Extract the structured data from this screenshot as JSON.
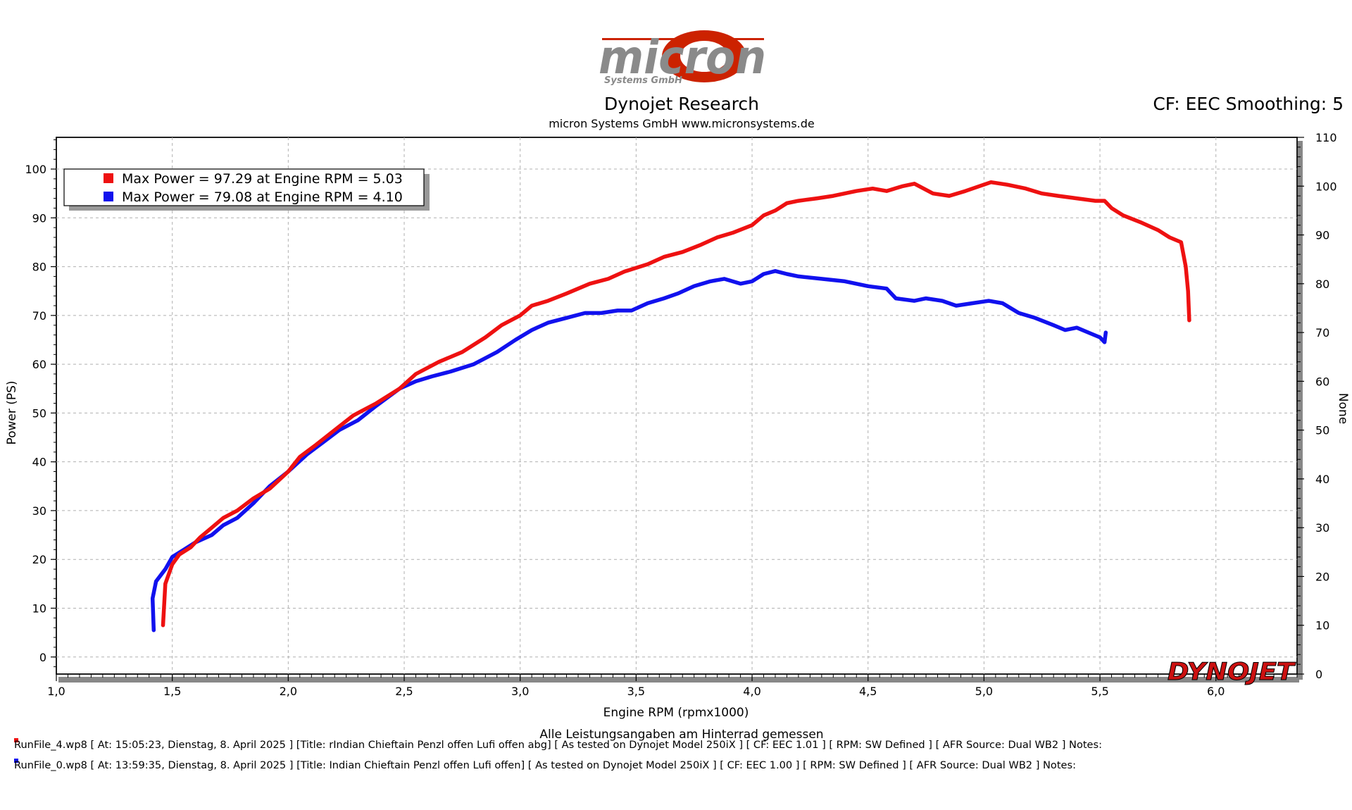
{
  "logo": {
    "brand": "micron",
    "tagline": "Systems GmbH"
  },
  "header": {
    "title": "Dynojet Research",
    "subtitle": "micron Systems GmbH  www.micronsystems.de",
    "cf_info": "CF: EEC Smoothing: 5"
  },
  "dynojet_logo": "DYNOJET",
  "colors": {
    "run1": "#ee1111",
    "run2": "#1111ee",
    "grid": "#b0b0b0",
    "logo_red": "#cc2200",
    "logo_gray": "#8a8a8a"
  },
  "chart_data": {
    "type": "line",
    "xlabel": "Engine RPM (rpmx1000)",
    "ylabel": "Power (PS)",
    "y2label": "None",
    "xlim": [
      1.0,
      6.35
    ],
    "ylim": [
      -3.5,
      106.5
    ],
    "y2lim": [
      0,
      110
    ],
    "xticks": [
      "1,0",
      "1,5",
      "2,0",
      "2,5",
      "3,0",
      "3,5",
      "4,0",
      "4,5",
      "5,0",
      "5,5",
      "6,0"
    ],
    "xtick_values": [
      1.0,
      1.5,
      2.0,
      2.5,
      3.0,
      3.5,
      4.0,
      4.5,
      5.0,
      5.5,
      6.0
    ],
    "yticks": [
      0,
      10,
      20,
      30,
      40,
      50,
      60,
      70,
      80,
      90,
      100
    ],
    "y2ticks": [
      0,
      10,
      20,
      30,
      40,
      50,
      60,
      70,
      80,
      90,
      100,
      110
    ],
    "grid": true,
    "legend_position": "top-left",
    "legend": [
      "Max Power = 97.29 at Engine RPM = 5.03",
      "Max Power = 79.08 at Engine RPM = 4.10"
    ],
    "series": [
      {
        "points": [
          [
            1.46,
            6.5
          ],
          [
            1.47,
            15
          ],
          [
            1.5,
            19
          ],
          [
            1.53,
            21
          ],
          [
            1.58,
            22.5
          ],
          [
            1.62,
            24.5
          ],
          [
            1.67,
            26.5
          ],
          [
            1.72,
            28.5
          ],
          [
            1.78,
            30
          ],
          [
            1.85,
            32.5
          ],
          [
            1.92,
            34.5
          ],
          [
            2.0,
            38
          ],
          [
            2.05,
            41
          ],
          [
            2.12,
            43.5
          ],
          [
            2.2,
            46.5
          ],
          [
            2.28,
            49.5
          ],
          [
            2.38,
            52
          ],
          [
            2.48,
            55
          ],
          [
            2.55,
            58
          ],
          [
            2.65,
            60.5
          ],
          [
            2.75,
            62.5
          ],
          [
            2.85,
            65.5
          ],
          [
            2.92,
            68
          ],
          [
            3.0,
            70
          ],
          [
            3.05,
            72
          ],
          [
            3.12,
            73
          ],
          [
            3.2,
            74.5
          ],
          [
            3.3,
            76.5
          ],
          [
            3.38,
            77.5
          ],
          [
            3.45,
            79
          ],
          [
            3.55,
            80.5
          ],
          [
            3.62,
            82
          ],
          [
            3.7,
            83
          ],
          [
            3.78,
            84.5
          ],
          [
            3.85,
            86
          ],
          [
            3.92,
            87
          ],
          [
            4.0,
            88.5
          ],
          [
            4.05,
            90.5
          ],
          [
            4.1,
            91.5
          ],
          [
            4.15,
            93
          ],
          [
            4.2,
            93.5
          ],
          [
            4.28,
            94
          ],
          [
            4.35,
            94.5
          ],
          [
            4.45,
            95.5
          ],
          [
            4.52,
            96
          ],
          [
            4.58,
            95.5
          ],
          [
            4.65,
            96.5
          ],
          [
            4.7,
            97
          ],
          [
            4.78,
            95
          ],
          [
            4.85,
            94.5
          ],
          [
            4.92,
            95.5
          ],
          [
            5.03,
            97.3
          ],
          [
            5.1,
            96.8
          ],
          [
            5.18,
            96
          ],
          [
            5.25,
            95
          ],
          [
            5.32,
            94.5
          ],
          [
            5.4,
            94
          ],
          [
            5.48,
            93.5
          ],
          [
            5.52,
            93.5
          ],
          [
            5.55,
            92
          ],
          [
            5.6,
            90.5
          ],
          [
            5.68,
            89
          ],
          [
            5.75,
            87.5
          ],
          [
            5.8,
            86
          ],
          [
            5.85,
            85
          ],
          [
            5.87,
            80
          ],
          [
            5.88,
            75
          ],
          [
            5.885,
            69
          ]
        ]
      },
      {
        "points": [
          [
            1.42,
            5.5
          ],
          [
            1.415,
            12
          ],
          [
            1.43,
            15.5
          ],
          [
            1.47,
            18
          ],
          [
            1.5,
            20.5
          ],
          [
            1.55,
            22
          ],
          [
            1.6,
            23.5
          ],
          [
            1.67,
            25
          ],
          [
            1.72,
            27
          ],
          [
            1.78,
            28.5
          ],
          [
            1.85,
            31.5
          ],
          [
            1.92,
            35
          ],
          [
            2.0,
            38
          ],
          [
            2.08,
            41.5
          ],
          [
            2.15,
            44
          ],
          [
            2.22,
            46.5
          ],
          [
            2.3,
            48.5
          ],
          [
            2.38,
            51.5
          ],
          [
            2.48,
            55
          ],
          [
            2.55,
            56.5
          ],
          [
            2.62,
            57.5
          ],
          [
            2.7,
            58.5
          ],
          [
            2.8,
            60
          ],
          [
            2.9,
            62.5
          ],
          [
            2.98,
            65
          ],
          [
            3.05,
            67
          ],
          [
            3.12,
            68.5
          ],
          [
            3.2,
            69.5
          ],
          [
            3.28,
            70.5
          ],
          [
            3.35,
            70.5
          ],
          [
            3.42,
            71
          ],
          [
            3.48,
            71
          ],
          [
            3.55,
            72.5
          ],
          [
            3.62,
            73.5
          ],
          [
            3.68,
            74.5
          ],
          [
            3.75,
            76
          ],
          [
            3.82,
            77
          ],
          [
            3.88,
            77.5
          ],
          [
            3.95,
            76.5
          ],
          [
            4.0,
            77
          ],
          [
            4.05,
            78.5
          ],
          [
            4.1,
            79.1
          ],
          [
            4.15,
            78.5
          ],
          [
            4.2,
            78
          ],
          [
            4.3,
            77.5
          ],
          [
            4.4,
            77
          ],
          [
            4.5,
            76
          ],
          [
            4.58,
            75.5
          ],
          [
            4.62,
            73.5
          ],
          [
            4.7,
            73
          ],
          [
            4.75,
            73.5
          ],
          [
            4.82,
            73
          ],
          [
            4.88,
            72
          ],
          [
            4.95,
            72.5
          ],
          [
            5.02,
            73
          ],
          [
            5.08,
            72.5
          ],
          [
            5.15,
            70.5
          ],
          [
            5.22,
            69.5
          ],
          [
            5.3,
            68
          ],
          [
            5.35,
            67
          ],
          [
            5.4,
            67.5
          ],
          [
            5.45,
            66.5
          ],
          [
            5.5,
            65.5
          ],
          [
            5.52,
            64.5
          ],
          [
            5.525,
            66.5
          ]
        ]
      }
    ]
  },
  "footer": {
    "caption": "Alle Leistungsangaben am Hinterrad gemessen",
    "run1": "RunFile_4.wp8 [ At:  15:05:23,  Dienstag,  8.  April  2025 ]  [Title:  rIndian  Chieftain  Penzl  offen  Lufi  offen  abg]   [  As  tested  on  Dynojet  Model  250iX  ]  [  CF:  EEC  1.01  ]  [  RPM:  SW  Defined  ]  [  AFR  Source:  Dual  WB2  ]  Notes:",
    "run2": "RunFile_0.wp8 [ At:  13:59:35,  Dienstag,  8.  April  2025 ]  [Title:  Indian  Chieftain  Penzl  offen  Lufi  offen]   [  As  tested  on  Dynojet  Model  250iX  ]  [  CF:  EEC  1.00  ]  [  RPM:  SW  Defined  ]  [  AFR  Source:  Dual  WB2  ]  Notes:"
  }
}
